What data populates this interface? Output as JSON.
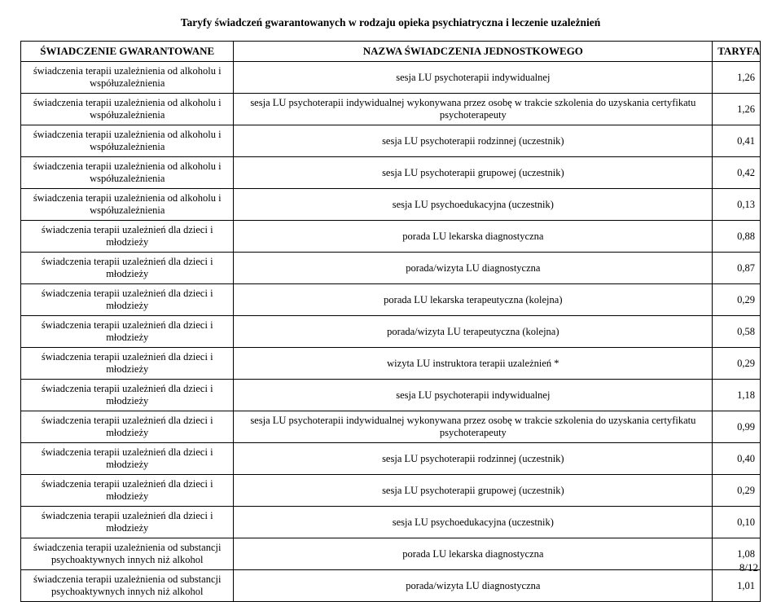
{
  "document": {
    "title": "Taryfy świadczeń gwarantowanych w rodzaju opieka psychiatryczna i leczenie uzależnień",
    "page_number": "8/12",
    "headers": {
      "col1": "ŚWIADCZENIE GWARANTOWANE",
      "col2": "NAZWA ŚWIADCZENIA JEDNOSTKOWEGO",
      "col3": "TARYFA"
    },
    "rows": [
      {
        "c1": "świadczenia terapii uzależnienia od alkoholu i współuzależnienia",
        "c2": "sesja LU psychoterapii indywidualnej",
        "c3": "1,26"
      },
      {
        "c1": "świadczenia terapii uzależnienia od alkoholu i współuzależnienia",
        "c2": "sesja LU psychoterapii indywidualnej wykonywana przez osobę w trakcie szkolenia do uzyskania certyfikatu psychoterapeuty",
        "c3": "1,26"
      },
      {
        "c1": "świadczenia terapii uzależnienia od alkoholu i współuzależnienia",
        "c2": "sesja LU psychoterapii rodzinnej (uczestnik)",
        "c3": "0,41"
      },
      {
        "c1": "świadczenia terapii uzależnienia od alkoholu i współuzależnienia",
        "c2": "sesja LU psychoterapii grupowej (uczestnik)",
        "c3": "0,42"
      },
      {
        "c1": "świadczenia terapii uzależnienia od alkoholu i współuzależnienia",
        "c2": "sesja LU psychoedukacyjna (uczestnik)",
        "c3": "0,13"
      },
      {
        "c1": "świadczenia terapii uzależnień dla dzieci i młodzieży",
        "c2": "porada LU lekarska diagnostyczna",
        "c3": "0,88"
      },
      {
        "c1": "świadczenia terapii uzależnień dla dzieci i młodzieży",
        "c2": "porada/wizyta LU diagnostyczna",
        "c3": "0,87"
      },
      {
        "c1": "świadczenia terapii uzależnień dla dzieci i młodzieży",
        "c2": "porada LU lekarska terapeutyczna (kolejna)",
        "c3": "0,29"
      },
      {
        "c1": "świadczenia terapii uzależnień dla dzieci i młodzieży",
        "c2": "porada/wizyta LU terapeutyczna (kolejna)",
        "c3": "0,58"
      },
      {
        "c1": "świadczenia terapii uzależnień dla dzieci i młodzieży",
        "c2": "wizyta LU instruktora terapii uzależnień *",
        "c3": "0,29"
      },
      {
        "c1": "świadczenia terapii uzależnień dla dzieci i młodzieży",
        "c2": "sesja LU psychoterapii indywidualnej",
        "c3": "1,18"
      },
      {
        "c1": "świadczenia terapii uzależnień dla dzieci i młodzieży",
        "c2": "sesja LU psychoterapii indywidualnej wykonywana przez osobę w trakcie szkolenia do uzyskania certyfikatu psychoterapeuty",
        "c3": "0,99"
      },
      {
        "c1": "świadczenia terapii uzależnień dla dzieci i młodzieży",
        "c2": "sesja LU psychoterapii rodzinnej (uczestnik)",
        "c3": "0,40"
      },
      {
        "c1": "świadczenia terapii uzależnień dla dzieci i młodzieży",
        "c2": "sesja LU psychoterapii grupowej (uczestnik)",
        "c3": "0,29"
      },
      {
        "c1": "świadczenia terapii uzależnień dla dzieci i młodzieży",
        "c2": "sesja LU psychoedukacyjna (uczestnik)",
        "c3": "0,10"
      },
      {
        "c1": "świadczenia terapii uzależnienia od substancji psychoaktywnych innych niż alkohol",
        "c2": "porada LU lekarska diagnostyczna",
        "c3": "1,08"
      },
      {
        "c1": "świadczenia terapii uzależnienia od substancji psychoaktywnych innych niż alkohol",
        "c2": "porada/wizyta LU diagnostyczna",
        "c3": "1,01"
      }
    ]
  }
}
